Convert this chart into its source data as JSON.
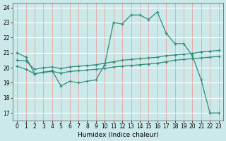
{
  "title": "",
  "xlabel": "Humidex (Indice chaleur)",
  "bg_color": "#cce9ea",
  "hgrid_color": "#ffffff",
  "vgrid_color": "#e8a0a0",
  "line_color": "#2e8b7a",
  "xlim": [
    -0.5,
    23.5
  ],
  "ylim": [
    16.5,
    24.3
  ],
  "yticks": [
    17,
    18,
    19,
    20,
    21,
    22,
    23,
    24
  ],
  "xticks": [
    0,
    1,
    2,
    3,
    4,
    5,
    6,
    7,
    8,
    9,
    10,
    11,
    12,
    13,
    14,
    15,
    16,
    17,
    18,
    19,
    20,
    21,
    22,
    23
  ],
  "line1_x": [
    0,
    1,
    2,
    3,
    4,
    5,
    6,
    7,
    8,
    9,
    10,
    11,
    12,
    13,
    14,
    15,
    16,
    17,
    18,
    19,
    20,
    21,
    22,
    23
  ],
  "line1_y": [
    21.0,
    20.7,
    19.6,
    19.7,
    19.8,
    18.8,
    19.1,
    19.0,
    19.1,
    19.2,
    20.2,
    23.0,
    22.9,
    23.5,
    23.5,
    23.2,
    23.7,
    22.3,
    21.6,
    21.6,
    20.8,
    19.2,
    17.0,
    17.0
  ],
  "line2_x": [
    0,
    1,
    2,
    3,
    4,
    5,
    6,
    7,
    8,
    9,
    10,
    11,
    12,
    13,
    14,
    15,
    16,
    17,
    18,
    19,
    20,
    21,
    22,
    23
  ],
  "line2_y": [
    20.5,
    20.45,
    19.9,
    20.0,
    20.05,
    19.95,
    20.05,
    20.1,
    20.15,
    20.2,
    20.3,
    20.4,
    20.5,
    20.55,
    20.6,
    20.65,
    20.7,
    20.8,
    20.85,
    20.9,
    20.95,
    21.05,
    21.1,
    21.15
  ],
  "line3_x": [
    0,
    1,
    2,
    3,
    4,
    5,
    6,
    7,
    8,
    9,
    10,
    11,
    12,
    13,
    14,
    15,
    16,
    17,
    18,
    19,
    20,
    21,
    22,
    23
  ],
  "line3_y": [
    20.1,
    19.9,
    19.6,
    19.7,
    19.75,
    19.65,
    19.75,
    19.8,
    19.85,
    19.9,
    19.95,
    20.05,
    20.1,
    20.15,
    20.2,
    20.25,
    20.3,
    20.4,
    20.5,
    20.55,
    20.6,
    20.65,
    20.7,
    20.75
  ]
}
